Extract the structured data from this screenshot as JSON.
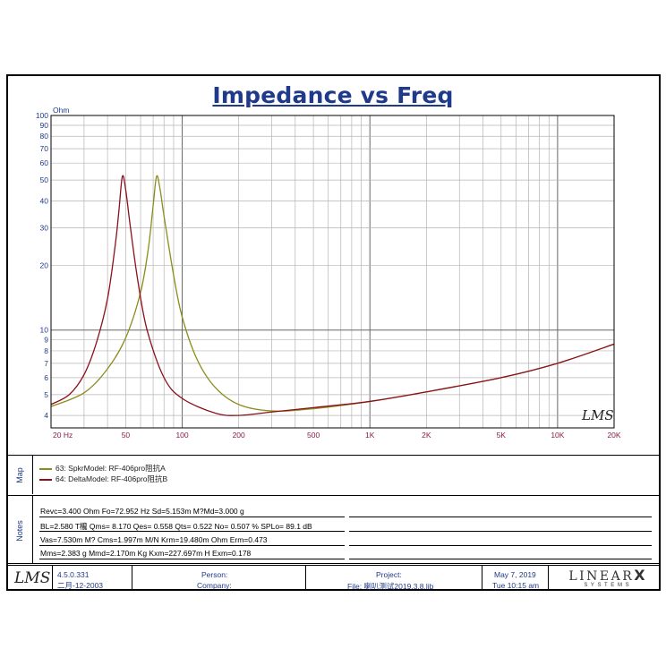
{
  "chart_data": {
    "type": "line",
    "title": "Impedance vs Freq",
    "ylabel": "Ohm",
    "x_scale": "log",
    "y_scale": "log",
    "xlim": [
      20,
      20000
    ],
    "ylim": [
      3.5,
      100
    ],
    "x_ticks": [
      "20 Hz",
      "50",
      "100",
      "200",
      "500",
      "1K",
      "2K",
      "5K",
      "10K",
      "20K"
    ],
    "y_ticks": [
      "100",
      "90",
      "80",
      "70",
      "60",
      "50",
      "40",
      "30",
      "20",
      "10",
      "9",
      "8",
      "7",
      "6",
      "5",
      "4"
    ],
    "grid": true,
    "series": [
      {
        "name": "63: SpkrModel: RF-406pro阻抗A",
        "color": "#8c8c1a",
        "points": [
          [
            20,
            4.4
          ],
          [
            30,
            5.1
          ],
          [
            40,
            6.6
          ],
          [
            50,
            9.2
          ],
          [
            60,
            15
          ],
          [
            66,
            24
          ],
          [
            70,
            38
          ],
          [
            73,
            52
          ],
          [
            76,
            46
          ],
          [
            80,
            34
          ],
          [
            90,
            18
          ],
          [
            100,
            11.5
          ],
          [
            120,
            7.3
          ],
          [
            150,
            5.4
          ],
          [
            200,
            4.5
          ],
          [
            300,
            4.2
          ],
          [
            500,
            4.3
          ],
          [
            1000,
            4.65
          ],
          [
            2000,
            5.15
          ],
          [
            5000,
            6.0
          ],
          [
            10000,
            7.0
          ],
          [
            20000,
            8.6
          ]
        ]
      },
      {
        "name": "64: DeltaModel: RF-406pro阻抗B",
        "color": "#8b0f1c",
        "points": [
          [
            20,
            4.5
          ],
          [
            25,
            5.0
          ],
          [
            30,
            6.2
          ],
          [
            35,
            8.8
          ],
          [
            40,
            14
          ],
          [
            44,
            25
          ],
          [
            46,
            36
          ],
          [
            48,
            52
          ],
          [
            50,
            45
          ],
          [
            53,
            30
          ],
          [
            58,
            17
          ],
          [
            65,
            10
          ],
          [
            80,
            6.0
          ],
          [
            100,
            4.8
          ],
          [
            150,
            4.1
          ],
          [
            200,
            4.0
          ],
          [
            300,
            4.15
          ],
          [
            500,
            4.35
          ],
          [
            1000,
            4.65
          ],
          [
            2000,
            5.15
          ],
          [
            5000,
            6.0
          ],
          [
            10000,
            7.0
          ],
          [
            20000,
            8.6
          ]
        ]
      }
    ]
  },
  "map_label": "Map",
  "notes_label": "Notes",
  "notes": [
    "Revc=3.400 Ohm  Fo=72.952 Hz  Sd=5.153m M?Md=3.000 g",
    "BL=2.580 T櫳  Qms= 8.170  Qes= 0.558  Qts= 0.522  No= 0.507 %  SPLo= 89.1 dB",
    "Vas=7.530m M? Cms=1.997m M/N  Krm=19.480m Ohm  Erm=0.473",
    "Mms=2.383 g  Mmd=2.170m Kg  Kxm=227.697m H  Exm=0.178"
  ],
  "watermark": "LMS",
  "footer": {
    "logo": "LMS",
    "version": "4.5.0.331",
    "version_date": "二月-12-2003",
    "person": "Person:",
    "company": "Company:",
    "project": "Project:",
    "file": "File: 喇叭测试2019.3.8.lib",
    "date": "May  7, 2019",
    "time": "Tue 10:15 am",
    "brand": "LINEAR",
    "brand_x": "X",
    "brand_sub": "S Y S T E M S"
  }
}
